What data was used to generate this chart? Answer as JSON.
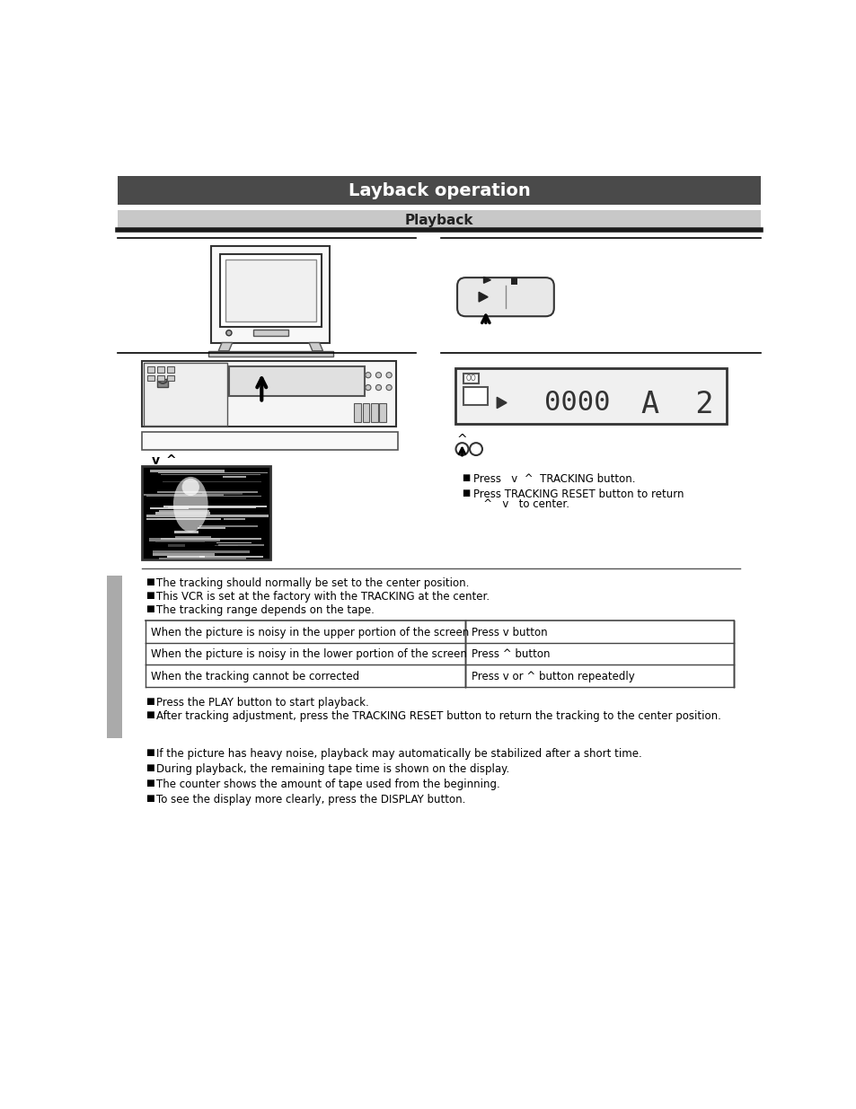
{
  "title_bar_text": "Layback operation",
  "title_bar_color": "#4a4a4a",
  "title_bar_text_color": "#ffffff",
  "section_bar_text": "Playback",
  "section_bar_color": "#c8c8c8",
  "section_bar_border_color": "#1a1a1a",
  "page_bg": "#ffffff",
  "bullet_points": [
    "The tracking should normally be set to the center position.",
    "This VCR is set at the factory with the TRACKING at the center.",
    "The tracking range depends on the tape."
  ],
  "table_rows": [
    [
      "When the picture is noisy in the upper portion of the screen",
      "Press v button"
    ],
    [
      "When the picture is noisy in the lower portion of the screen",
      "Press ^ button"
    ],
    [
      "When the tracking cannot be corrected",
      "Press v or ^ button repeatedly"
    ]
  ],
  "extra_bullets": [
    "Press the PLAY button to start playback.",
    "After tracking adjustment, press the TRACKING RESET button to return the tracking to the center position."
  ],
  "note_bullets": [
    "If the picture has heavy noise, playback may automatically be stabilized after a short time.",
    "During playback, the remaining tape time is shown on the display.",
    "The counter shows the amount of tape used from the beginning.",
    "To see the display more clearly, press the DISPLAY button."
  ]
}
